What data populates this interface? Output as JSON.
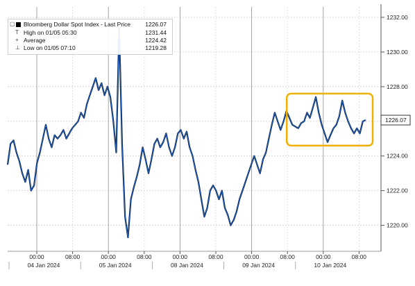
{
  "chart_data": {
    "type": "line",
    "ylim": [
      1218.5,
      1232.6
    ],
    "y_ticks": [
      "1220.00",
      "1222.00",
      "1224.00",
      "1226.00",
      "1228.00",
      "1230.00",
      "1232.00"
    ],
    "x_tick_labels": [
      {
        "time": "00:00",
        "date": "04 Jan 2024"
      },
      {
        "time": "08:00",
        "date": ""
      },
      {
        "time": "00:00",
        "date": "05 Jan 2024"
      },
      {
        "time": "08:00",
        "date": ""
      },
      {
        "time": "00:00",
        "date": "08 Jan 2024"
      },
      {
        "time": "08:00",
        "date": ""
      },
      {
        "time": "00:00",
        "date": "09 Jan 2024"
      },
      {
        "time": "08:00",
        "date": ""
      },
      {
        "time": "00:00",
        "date": "10 Jan 2024"
      },
      {
        "time": "08:00",
        "date": ""
      }
    ],
    "last_price_label": "1226.07",
    "legend": {
      "title": "Bloomberg Dollar Spot Index - Last Price",
      "title_value": "1226.07",
      "high_label": "High on 01/05 05:30",
      "high_value": "1231.44",
      "avg_label": "Average",
      "avg_value": "1224.42",
      "low_label": "Low on 01/05 07:10",
      "low_value": "1219.28"
    },
    "series_color": "#1f5fbf",
    "highlight_color": "#f0b000",
    "grid": true,
    "series": [
      {
        "values": [
          1223.5,
          1224.7,
          1224.9,
          1224.2,
          1223.7,
          1223.0,
          1222.5,
          1223.2,
          1222.0,
          1222.3,
          1223.6,
          1224.2,
          1225.0,
          1225.8,
          1225.0,
          1224.5,
          1225.2,
          1225.0,
          1225.2,
          1225.5,
          1225.0,
          1225.3,
          1225.6,
          1225.8,
          1226.0,
          1226.5,
          1226.2,
          1227.0,
          1227.5,
          1228.0,
          1228.5,
          1227.8,
          1228.2,
          1227.5,
          1228.0,
          1227.4,
          1226.0,
          1224.2,
          1231.4,
          1224.6,
          1220.5,
          1219.3,
          1221.5,
          1222.2,
          1222.8,
          1223.5,
          1224.5,
          1223.8,
          1223.0,
          1223.8,
          1224.7,
          1225.0,
          1224.5,
          1224.8,
          1225.3,
          1224.5,
          1224.0,
          1224.5,
          1225.3,
          1225.5,
          1225.0,
          1225.4,
          1224.5,
          1224.0,
          1223.2,
          1222.5,
          1221.5,
          1220.5,
          1221.0,
          1222.0,
          1222.3,
          1222.0,
          1221.5,
          1222.0,
          1221.0,
          1220.6,
          1220.0,
          1220.3,
          1220.8,
          1221.5,
          1222.0,
          1222.5,
          1223.0,
          1223.5,
          1224.0,
          1223.5,
          1223.0,
          1223.8,
          1224.2,
          1225.0,
          1225.8,
          1226.5,
          1226.0,
          1225.5,
          1226.0,
          1226.6,
          1226.2,
          1225.8,
          1225.7,
          1225.6,
          1225.9,
          1226.0,
          1226.5,
          1226.2,
          1226.8,
          1227.4,
          1226.5,
          1225.8,
          1225.3,
          1224.8,
          1225.2,
          1225.6,
          1225.8,
          1226.3,
          1227.2,
          1226.5,
          1226.0,
          1225.6,
          1225.3,
          1225.6,
          1225.3,
          1226.0,
          1226.07
        ]
      }
    ]
  }
}
